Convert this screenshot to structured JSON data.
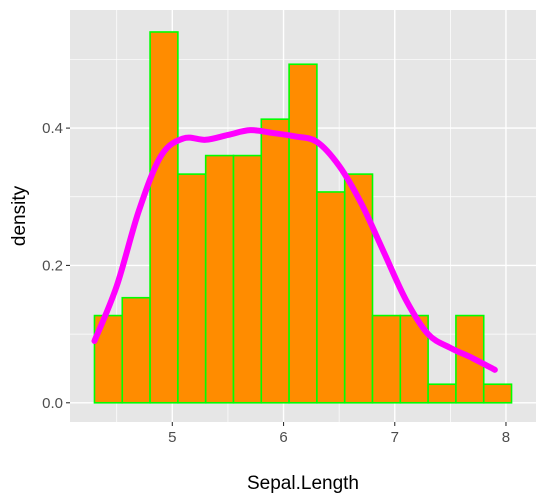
{
  "chart_data": {
    "type": "histogram",
    "xlabel": "Sepal.Length",
    "ylabel": "density",
    "xlim": [
      4.08,
      8.27
    ],
    "ylim": [
      -0.028,
      0.572
    ],
    "x_ticks": [
      5,
      6,
      7,
      8
    ],
    "y_ticks": [
      0.0,
      0.2,
      0.4
    ],
    "y_tick_labels": [
      "0.0",
      "0.2",
      "0.4"
    ],
    "grid": true,
    "colors": {
      "panel_background": "#e6e6e6",
      "grid": "#ffffff",
      "bar_fill": "#ff8c00",
      "bar_outline": "#00ff00",
      "density_line": "#ff00ff"
    },
    "bins": [
      {
        "x0": 4.3,
        "x1": 4.55,
        "density": 0.127
      },
      {
        "x0": 4.55,
        "x1": 4.8,
        "density": 0.153
      },
      {
        "x0": 4.8,
        "x1": 5.05,
        "density": 0.54
      },
      {
        "x0": 5.05,
        "x1": 5.3,
        "density": 0.333
      },
      {
        "x0": 5.3,
        "x1": 5.55,
        "density": 0.36
      },
      {
        "x0": 5.55,
        "x1": 5.8,
        "density": 0.36
      },
      {
        "x0": 5.8,
        "x1": 6.05,
        "density": 0.413
      },
      {
        "x0": 6.05,
        "x1": 6.3,
        "density": 0.493
      },
      {
        "x0": 6.3,
        "x1": 6.55,
        "density": 0.307
      },
      {
        "x0": 6.55,
        "x1": 6.8,
        "density": 0.333
      },
      {
        "x0": 6.8,
        "x1": 7.05,
        "density": 0.127
      },
      {
        "x0": 7.05,
        "x1": 7.3,
        "density": 0.127
      },
      {
        "x0": 7.3,
        "x1": 7.55,
        "density": 0.027
      },
      {
        "x0": 7.55,
        "x1": 7.8,
        "density": 0.127
      },
      {
        "x0": 7.8,
        "x1": 8.05,
        "density": 0.027
      }
    ],
    "density_curve": {
      "x": [
        4.3,
        4.5,
        4.7,
        4.9,
        5.1,
        5.3,
        5.5,
        5.7,
        5.9,
        6.1,
        6.3,
        6.5,
        6.7,
        6.9,
        7.1,
        7.3,
        7.5,
        7.7,
        7.9
      ],
      "y": [
        0.09,
        0.17,
        0.28,
        0.36,
        0.385,
        0.383,
        0.39,
        0.397,
        0.393,
        0.388,
        0.38,
        0.345,
        0.29,
        0.22,
        0.15,
        0.1,
        0.08,
        0.065,
        0.048
      ]
    }
  }
}
